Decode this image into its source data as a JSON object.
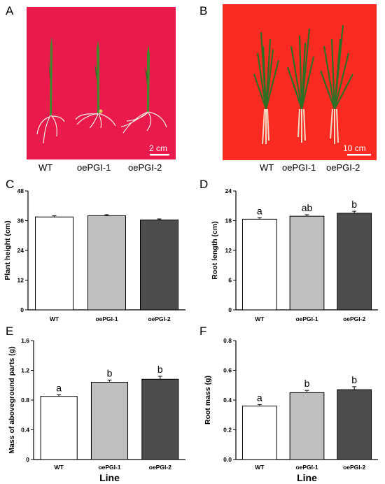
{
  "panels": {
    "A": {
      "letter": "A",
      "labels": [
        "WT",
        "oePGI-1",
        "oePGI-2"
      ],
      "scale_bar": "2 cm",
      "background": "#ea1a4c"
    },
    "B": {
      "letter": "B",
      "labels": [
        "WT",
        "oePGI-1",
        "oePGI-2"
      ],
      "scale_bar": "10 cm",
      "background": "#fb2b22"
    }
  },
  "chart_data": [
    {
      "id": "C",
      "letter": "C",
      "type": "bar",
      "ylabel": "Plant height (cm)",
      "xlabel": "",
      "categories": [
        "WT",
        "oePGI-1",
        "oePGI-2"
      ],
      "values": [
        37.5,
        38.0,
        36.3
      ],
      "errors": [
        0.5,
        0.4,
        0.4
      ],
      "letters": [
        "",
        "",
        ""
      ],
      "ylim": [
        0,
        48
      ],
      "yticks": [
        0,
        12,
        24,
        36,
        48
      ],
      "tick_labels": [
        "0",
        "12",
        "24",
        "36",
        "48"
      ]
    },
    {
      "id": "D",
      "letter": "D",
      "type": "bar",
      "ylabel": "Root length (cm)",
      "xlabel": "",
      "categories": [
        "WT",
        "oePGI-1",
        "oePGI-2"
      ],
      "values": [
        18.3,
        18.9,
        19.5
      ],
      "errors": [
        0.3,
        0.3,
        0.4
      ],
      "letters": [
        "a",
        "ab",
        "b"
      ],
      "ylim": [
        0,
        24
      ],
      "yticks": [
        0,
        6,
        12,
        18,
        24
      ],
      "tick_labels": [
        "0",
        "6",
        "12",
        "18",
        "24"
      ]
    },
    {
      "id": "E",
      "letter": "E",
      "type": "bar",
      "ylabel": "Mass of aboveground parts (g)",
      "xlabel": "Line",
      "categories": [
        "WT",
        "oePGI-1",
        "oePGI-2"
      ],
      "values": [
        0.85,
        1.04,
        1.08
      ],
      "errors": [
        0.02,
        0.03,
        0.04
      ],
      "letters": [
        "a",
        "b",
        "b"
      ],
      "ylim": [
        0,
        1.6
      ],
      "yticks": [
        0,
        0.4,
        0.8,
        1.2,
        1.6
      ],
      "tick_labels": [
        "0",
        "0.4",
        "0.8",
        "1.2",
        "1.6"
      ]
    },
    {
      "id": "F",
      "letter": "F",
      "type": "bar",
      "ylabel": "Root mass (g)",
      "xlabel": "Line",
      "categories": [
        "WT",
        "oePGI-1",
        "oePGI-2"
      ],
      "values": [
        0.36,
        0.45,
        0.47
      ],
      "errors": [
        0.01,
        0.015,
        0.02
      ],
      "letters": [
        "a",
        "b",
        "b"
      ],
      "ylim": [
        0,
        0.8
      ],
      "yticks": [
        0,
        0.2,
        0.4,
        0.6,
        0.8
      ],
      "tick_labels": [
        "0.0",
        "0.2",
        "0.4",
        "0.6",
        "0.8"
      ]
    }
  ],
  "colors": {
    "bar_fills": [
      "#ffffff",
      "#bfbfbf",
      "#4d4d4d"
    ],
    "bar_stroke": "#000000",
    "plant_green": "#3f8a2c",
    "root_color": "#f0e0d0"
  }
}
